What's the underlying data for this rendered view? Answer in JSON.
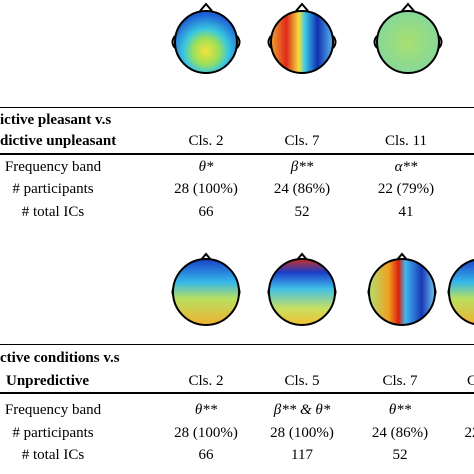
{
  "table1": {
    "title": [
      "ictive pleasant v.s",
      "dictive unpleasant"
    ],
    "columns": [
      "Cls. 2",
      "Cls. 7",
      "Cls. 11"
    ],
    "rows": [
      [
        "Frequency band",
        "θ*",
        "β**",
        "α**"
      ],
      [
        "# participants",
        "28 (100%)",
        "24 (86%)",
        "22 (79%)"
      ],
      [
        "# total ICs",
        "66",
        "52",
        "41"
      ]
    ]
  },
  "table2": {
    "title": [
      "ctive conditions v.s",
      "Unpredictive"
    ],
    "columns": [
      "Cls. 2",
      "Cls. 5",
      "Cls. 7",
      "C"
    ],
    "rows": [
      [
        "Frequency band",
        "θ**",
        "β** & θ*",
        "θ**"
      ],
      [
        "# participants",
        "28 (100%)",
        "28 (100%)",
        "24 (86%)",
        "22"
      ],
      [
        "# total ICs",
        "66",
        "117",
        "52"
      ]
    ]
  }
}
